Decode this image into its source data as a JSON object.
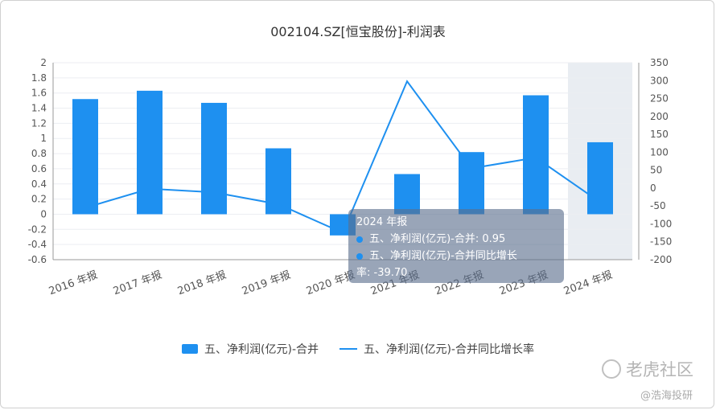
{
  "title": "002104.SZ[恒宝股份]-利润表",
  "chart_data": {
    "type": "bar+line",
    "categories": [
      "2016 年报",
      "2017 年报",
      "2018 年报",
      "2019 年报",
      "2020 年报",
      "2021 年报",
      "2022 年报",
      "2023 年报",
      "2024 年报"
    ],
    "series": [
      {
        "name": "五、净利润(亿元)-合并",
        "type": "bar",
        "axis": "left",
        "color": "#1e90f0",
        "values": [
          1.52,
          1.63,
          1.47,
          0.87,
          -0.28,
          0.53,
          0.82,
          1.57,
          0.95
        ]
      },
      {
        "name": "五、净利润(亿元)-合并同比增长率",
        "type": "line",
        "axis": "right",
        "color": "#1e90f0",
        "values": [
          -55,
          -2,
          -12,
          -45,
          -125,
          298,
          55,
          85,
          -39.7
        ]
      }
    ],
    "left_axis": {
      "ticks": [
        "2",
        "1.8",
        "1.6",
        "1.4",
        "1.2",
        "1",
        "0.8",
        "0.6",
        "0.4",
        "0.2",
        "0",
        "-0.2",
        "-0.4",
        "-0.6"
      ],
      "range": [
        -0.6,
        2
      ]
    },
    "right_axis": {
      "ticks": [
        "350",
        "300",
        "250",
        "200",
        "150",
        "100",
        "50",
        "0",
        "-50",
        "-100",
        "-150",
        "-200"
      ],
      "range": [
        -200,
        350
      ]
    },
    "highlighted_category": "2024 年报",
    "grid": true,
    "legend": "bottom"
  },
  "tooltip": {
    "title": "2024 年报",
    "row1": "五、净利润(亿元)-合并: 0.95",
    "row2": "五、净利润(亿元)-合并同比增长",
    "row3": "率: -39.70"
  },
  "watermark": {
    "brand": "老虎社区",
    "author": "@浩海投研"
  }
}
